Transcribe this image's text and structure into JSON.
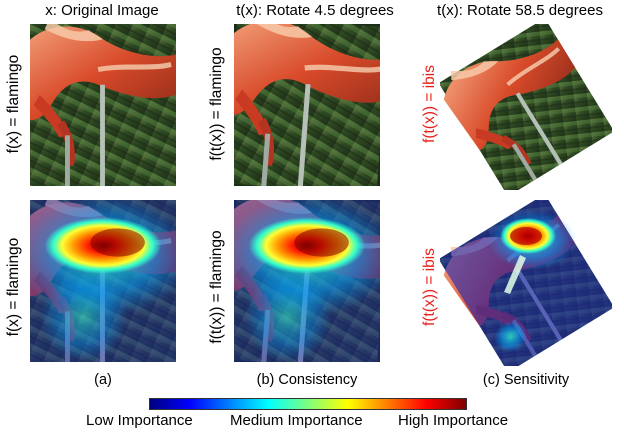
{
  "columns": [
    {
      "title": "x: Original Image",
      "caption": "(a)",
      "label_top": "f(x) = flamingo",
      "label_bottom": "f(x) = flamingo",
      "label_color": "#000000"
    },
    {
      "title": "t(x): Rotate 4.5 degrees",
      "caption": "(b) Consistency",
      "label_top": "f(t(x)) = flamingo",
      "label_bottom": "f(t(x)) = flamingo",
      "label_color": "#000000"
    },
    {
      "title": "t(x): Rotate 58.5 degrees",
      "caption": "(c) Sensitivity",
      "label_top": "f(t(x)) = ibis",
      "label_bottom": "f(t(x)) = ibis",
      "label_color": "#e8211b"
    }
  ],
  "colorbar": {
    "low_label": "Low Importance",
    "mid_label": "Medium Importance",
    "high_label": "High Importance",
    "colormap": [
      "#00007f",
      "#0000ff",
      "#0080ff",
      "#00ffff",
      "#7fff7f",
      "#ffff00",
      "#ff8000",
      "#ff0000",
      "#7f0000"
    ]
  },
  "colors": {
    "background_green": "#2e4a22",
    "flamingo_red": "#d84a2a",
    "highlight_red": "#e8211b"
  }
}
